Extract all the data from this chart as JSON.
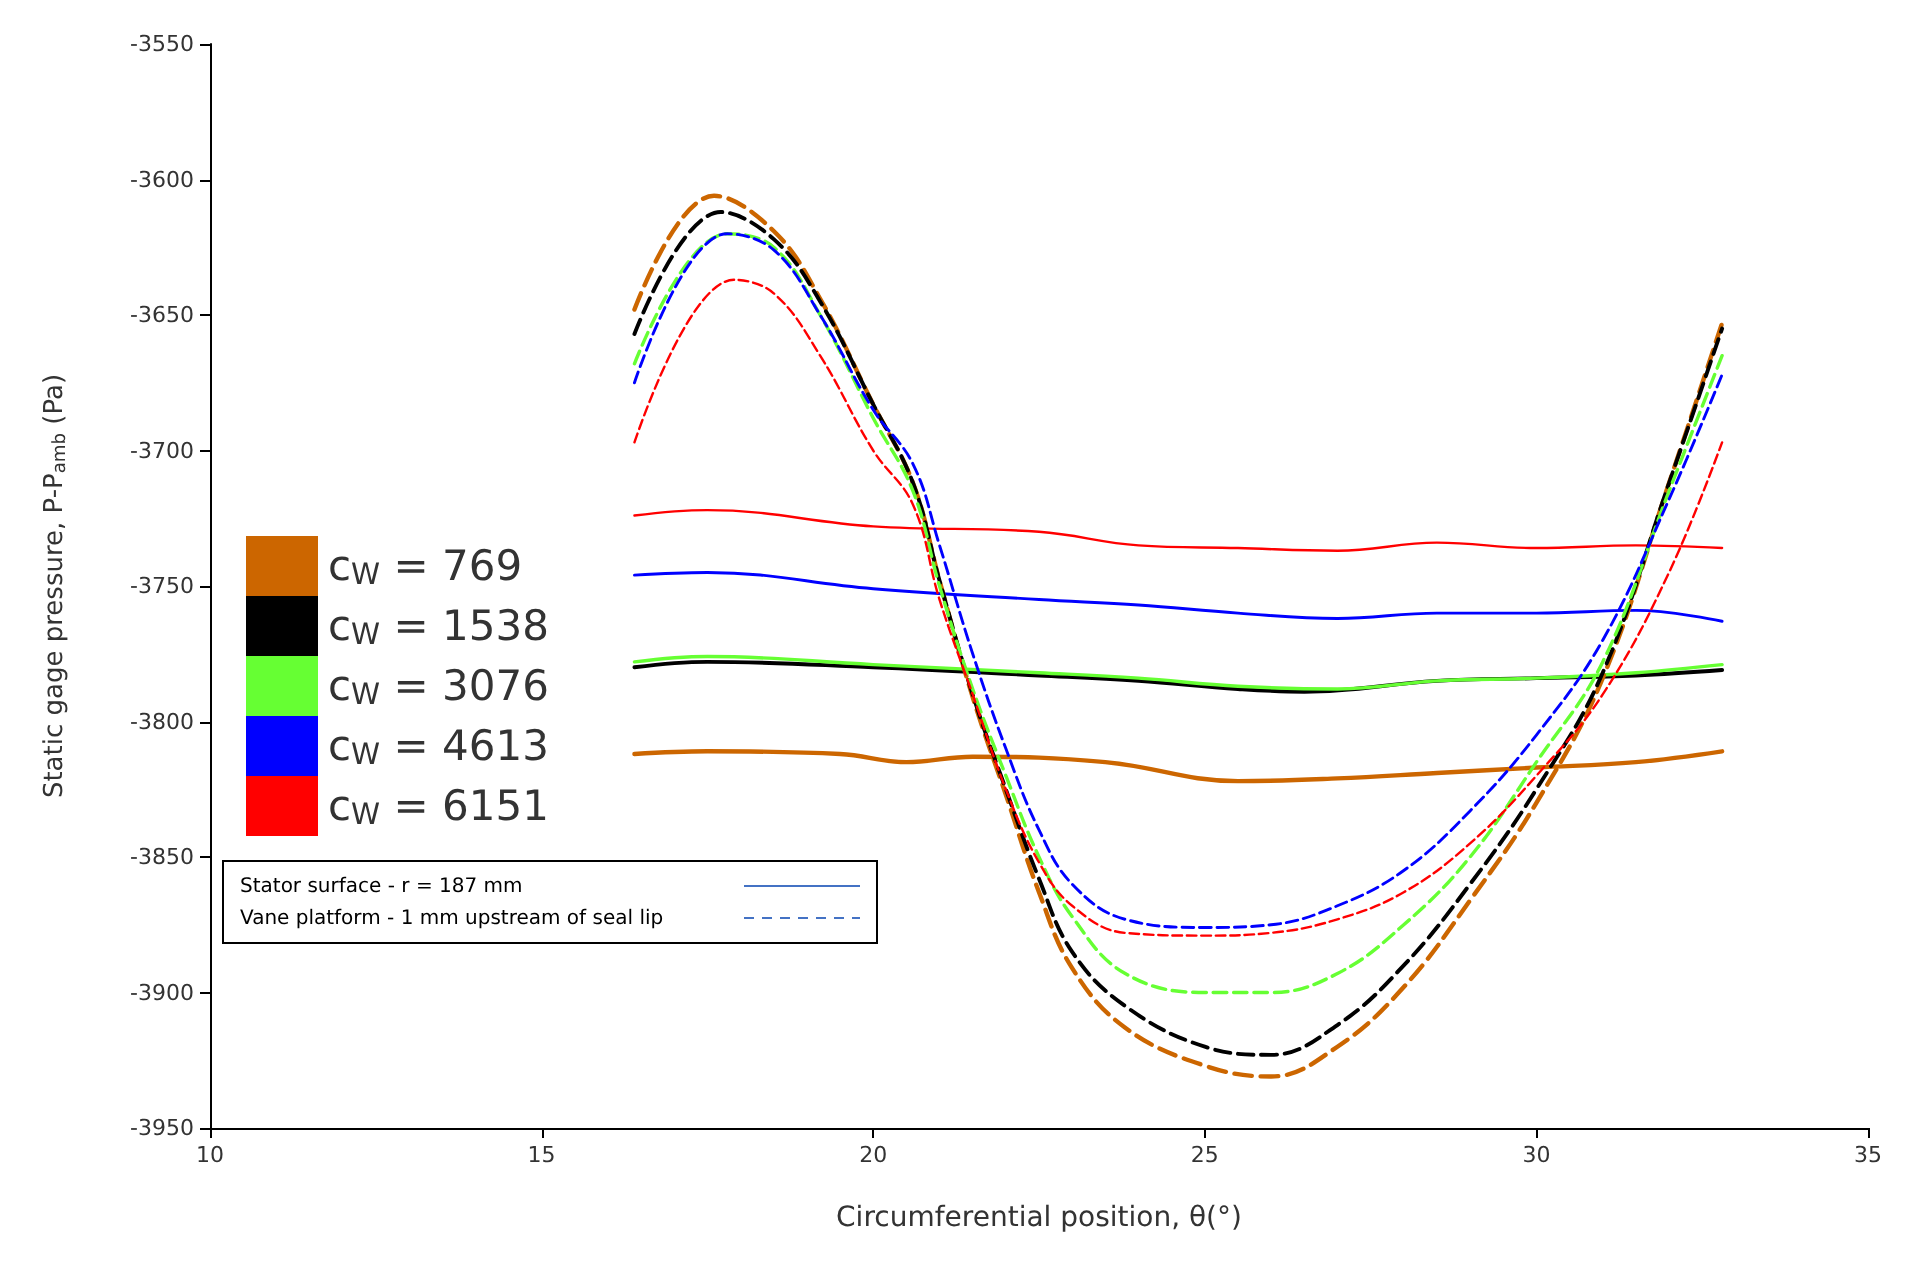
{
  "chart_data": {
    "type": "line",
    "xlabel": "Circumferential position, θ(°)",
    "ylabel": "Static gage pressure, P-P$_{amb}$ (Pa)",
    "xlim": [
      10,
      35
    ],
    "xticks": [
      10,
      15,
      20,
      25,
      30,
      35
    ],
    "ylim": [
      -3950,
      -3550
    ],
    "yticks": [
      -3950,
      -3900,
      -3850,
      -3800,
      -3750,
      -3700,
      -3650,
      -3600,
      -3550
    ],
    "grid": false,
    "legend": "left",
    "marker": "none",
    "annotations": [
      "Stator surface - r = 187 mm",
      "Vane platform - 1 mm upstream of seal lip"
    ],
    "series": [
      {
        "name": "c$_{W}$ = 769",
        "color": "#cc6600",
        "line_style": "solid",
        "x": [
          16.4,
          17.5,
          19.5,
          20.5,
          21.5,
          23.5,
          25.5,
          27,
          28.5,
          30,
          31.5,
          32.8
        ],
        "values": [
          -3812,
          -3811,
          -3812,
          -3815,
          -3813,
          -3815,
          -3822,
          -3821,
          -3819,
          -3817,
          -3815,
          -3811
        ]
      },
      {
        "name": "c$_{W}$ = 1538",
        "color": "#000000",
        "line_style": "solid",
        "x": [
          16.4,
          17.5,
          20,
          22.5,
          24,
          25.5,
          26.5,
          28.5,
          30,
          31.5,
          32.8
        ],
        "values": [
          -3780,
          -3778,
          -3780,
          -3783,
          -3785,
          -3788,
          -3789,
          -3785,
          -3784,
          -3783,
          -3781
        ]
      },
      {
        "name": "c$_{W}$ = 3076",
        "color": "#66ff33",
        "line_style": "solid",
        "x": [
          16.4,
          17.5,
          20,
          22.5,
          24,
          25.5,
          27,
          28.5,
          30,
          31.5,
          32.8
        ],
        "values": [
          -3778,
          -3776,
          -3779,
          -3782,
          -3784,
          -3787,
          -3788,
          -3785,
          -3784,
          -3782,
          -3779
        ]
      },
      {
        "name": "c$_{W}$ = 4613",
        "color": "#0000ff",
        "line_style": "solid",
        "x": [
          16.4,
          17.5,
          20,
          22.5,
          24,
          25.5,
          27,
          28.5,
          30,
          31.5,
          32.8
        ],
        "values": [
          -3746,
          -3745,
          -3751,
          -3755,
          -3757,
          -3760,
          -3762,
          -3760,
          -3760,
          -3759,
          -3763
        ]
      },
      {
        "name": "c$_{W}$ = 6151",
        "color": "#ff0000",
        "line_style": "solid",
        "x": [
          16.4,
          17.5,
          20,
          22.5,
          24,
          25.5,
          27,
          28.5,
          30,
          31.5,
          32.8
        ],
        "values": [
          -3724,
          -3722,
          -3728,
          -3730,
          -3735,
          -3736,
          -3737,
          -3734,
          -3736,
          -3735,
          -3736
        ]
      },
      {
        "color": "#cc6600",
        "line_style": "dashed",
        "x": [
          16.4,
          17.6,
          18.5,
          19.2,
          20,
          20.6,
          21,
          21.5,
          22,
          22.5,
          23,
          23.8,
          25,
          26,
          27,
          28,
          29,
          30,
          31,
          32,
          32.8
        ],
        "values": [
          -3648,
          -3606,
          -3619,
          -3644,
          -3683,
          -3712,
          -3748,
          -3791,
          -3827,
          -3863,
          -3891,
          -3913,
          -3927,
          -3931,
          -3920,
          -3898,
          -3866,
          -3830,
          -3784,
          -3712,
          -3653
        ]
      },
      {
        "color": "#000000",
        "line_style": "dashed",
        "x": [
          16.4,
          17.7,
          18.5,
          19.2,
          20,
          20.6,
          21,
          21.5,
          22,
          22.5,
          23,
          23.8,
          25,
          26,
          27,
          28,
          29,
          30,
          31,
          32,
          32.8
        ],
        "values": [
          -3657,
          -3612,
          -3622,
          -3645,
          -3683,
          -3712,
          -3748,
          -3790,
          -3825,
          -3858,
          -3885,
          -3905,
          -3920,
          -3923,
          -3912,
          -3890,
          -3860,
          -3825,
          -3782,
          -3712,
          -3655
        ]
      },
      {
        "color": "#66ff33",
        "line_style": "dashed",
        "x": [
          16.4,
          17.8,
          18.5,
          19.2,
          20,
          20.6,
          21,
          21.5,
          22,
          22.5,
          23,
          23.8,
          25,
          26,
          27,
          28,
          29,
          30,
          31,
          32,
          32.8
        ],
        "values": [
          -3668,
          -3620,
          -3625,
          -3650,
          -3688,
          -3715,
          -3750,
          -3788,
          -3820,
          -3850,
          -3872,
          -3893,
          -3900,
          -3900,
          -3893,
          -3875,
          -3850,
          -3815,
          -3778,
          -3715,
          -3665
        ]
      },
      {
        "color": "#0000ff",
        "line_style": "dashed",
        "x": [
          16.4,
          17.8,
          18.5,
          19.2,
          20,
          20.6,
          21,
          21.5,
          22,
          22.5,
          23,
          23.8,
          25,
          26,
          27,
          28,
          29,
          30,
          31,
          32,
          32.8
        ],
        "values": [
          -3675,
          -3620,
          -3626,
          -3650,
          -3685,
          -3705,
          -3735,
          -3775,
          -3810,
          -3840,
          -3860,
          -3873,
          -3876,
          -3875,
          -3868,
          -3855,
          -3833,
          -3805,
          -3770,
          -3718,
          -3672
        ]
      },
      {
        "color": "#ff0000",
        "line_style": "dashed",
        "x": [
          16.4,
          17.9,
          18.5,
          19.2,
          20,
          20.6,
          21,
          21.5,
          22,
          22.5,
          23,
          23.8,
          25,
          26,
          27,
          28,
          29,
          30,
          31,
          32,
          32.8
        ],
        "values": [
          -3697,
          -3637,
          -3642,
          -3665,
          -3700,
          -3720,
          -3755,
          -3790,
          -3825,
          -3852,
          -3868,
          -3878,
          -3879,
          -3878,
          -3873,
          -3863,
          -3845,
          -3820,
          -3790,
          -3745,
          -3697
        ]
      }
    ]
  }
}
